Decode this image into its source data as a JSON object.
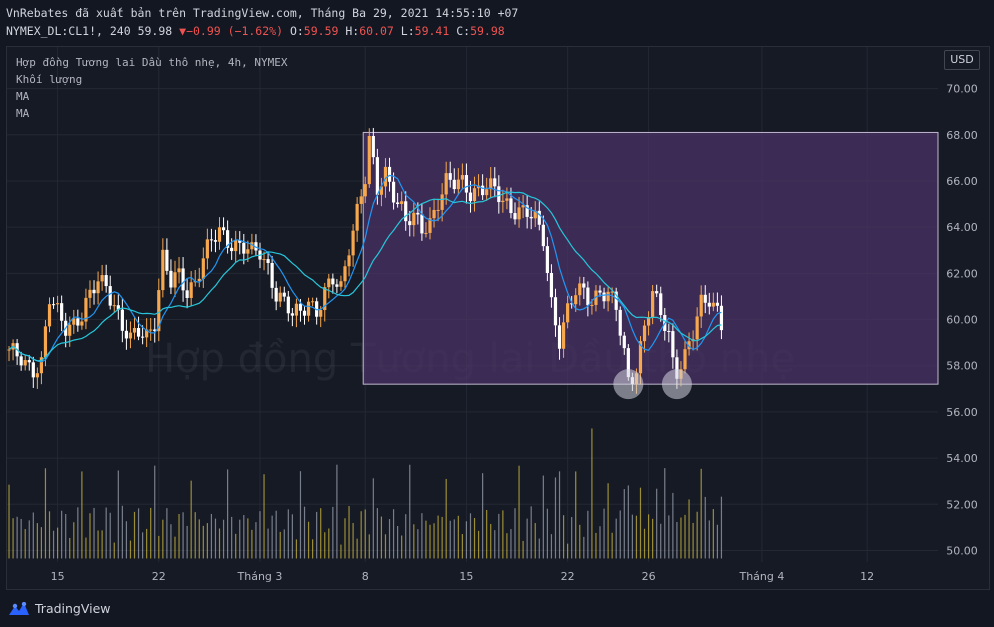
{
  "header": {
    "publisher_line": "VnRebates đã xuất bản trên TradingView.com, Tháng Ba 29, 2021 14:55:10 +07",
    "symbol_interval": "NYMEX_DL:CL1!, 240",
    "last_price": "59.98",
    "change": "−0.99 (−1.62%)",
    "open_label": "O:",
    "open": "59.59",
    "high_label": "H:",
    "high": "60.07",
    "low_label": "L:",
    "low": "59.41",
    "close_label": "C:",
    "close": "59.98"
  },
  "legend": {
    "title": "Hợp đồng Tương lai Dầu thô nhẹ, 4h, NYMEX",
    "volume": "Khối lượng",
    "ma1": "MA",
    "ma2": "MA"
  },
  "currency_label": "USD",
  "watermark": "Hợp đồng Tương lai Dầu thô nhẹ",
  "footer": {
    "brand": "TradingView"
  },
  "colors": {
    "background": "#131722",
    "up": "#f7a74d",
    "down": "#ffffff",
    "ma_fast": "#2196f3",
    "ma_slow": "#26c6da",
    "volume": "#c8b43c",
    "zone_fill": "#4a3366",
    "zone_stroke": "#c0b8d0",
    "marker": "#d1d4dc"
  },
  "chart_data": {
    "type": "candlestick",
    "title": "Hợp đồng Tương lai Dầu thô nhẹ, 4h, NYMEX",
    "y_axis": {
      "ticks": [
        50,
        52,
        54,
        56,
        58,
        60,
        62,
        64,
        66,
        68,
        70
      ],
      "labels": [
        "50.00",
        "52.00",
        "54.00",
        "56.00",
        "58.00",
        "60.00",
        "62.00",
        "64.00",
        "66.00",
        "68.00",
        "70.00"
      ],
      "range": [
        49.5,
        71.8
      ],
      "position": "right"
    },
    "x_axis": {
      "labels": [
        "15",
        "22",
        "Tháng 3",
        "8",
        "15",
        "22",
        "26",
        "Tháng 4",
        "12"
      ],
      "label_positions_in_bars": [
        12,
        37,
        62,
        88,
        113,
        138,
        158,
        186,
        212
      ],
      "total_slots": 230
    },
    "price_path": [
      [
        0,
        58.5
      ],
      [
        3,
        58.4
      ],
      [
        6,
        57.9
      ],
      [
        8,
        58.0
      ],
      [
        10,
        60.8
      ],
      [
        12,
        60.3
      ],
      [
        14,
        59.8
      ],
      [
        16,
        59.9
      ],
      [
        18,
        60.1
      ],
      [
        20,
        60.9
      ],
      [
        22,
        61.7
      ],
      [
        24,
        61.6
      ],
      [
        26,
        60.7
      ],
      [
        28,
        59.6
      ],
      [
        30,
        59.0
      ],
      [
        32,
        59.5
      ],
      [
        34,
        59.4
      ],
      [
        36,
        60.0
      ],
      [
        38,
        62.6
      ],
      [
        40,
        61.5
      ],
      [
        42,
        61.9
      ],
      [
        44,
        61.3
      ],
      [
        46,
        61.7
      ],
      [
        48,
        62.6
      ],
      [
        50,
        63.3
      ],
      [
        52,
        63.8
      ],
      [
        54,
        63.5
      ],
      [
        56,
        63.3
      ],
      [
        58,
        63.1
      ],
      [
        60,
        62.8
      ],
      [
        62,
        62.9
      ],
      [
        64,
        62.3
      ],
      [
        66,
        61.2
      ],
      [
        68,
        60.7
      ],
      [
        70,
        60.1
      ],
      [
        72,
        60.3
      ],
      [
        74,
        60.9
      ],
      [
        76,
        60.4
      ],
      [
        78,
        61.1
      ],
      [
        80,
        61.6
      ],
      [
        82,
        61.3
      ],
      [
        84,
        63.3
      ],
      [
        86,
        64.8
      ],
      [
        88,
        66.1
      ],
      [
        89,
        67.6
      ],
      [
        91,
        65.5
      ],
      [
        93,
        66.4
      ],
      [
        95,
        65.6
      ],
      [
        97,
        64.8
      ],
      [
        98,
        64.2
      ],
      [
        100,
        64.3
      ],
      [
        102,
        63.9
      ],
      [
        104,
        64.3
      ],
      [
        106,
        65.2
      ],
      [
        108,
        65.9
      ],
      [
        110,
        65.8
      ],
      [
        112,
        65.9
      ],
      [
        114,
        65.6
      ],
      [
        116,
        65.7
      ],
      [
        118,
        65.7
      ],
      [
        120,
        65.5
      ],
      [
        122,
        65.1
      ],
      [
        124,
        64.9
      ],
      [
        126,
        64.8
      ],
      [
        128,
        64.6
      ],
      [
        130,
        64.2
      ],
      [
        132,
        63.5
      ],
      [
        134,
        60.8
      ],
      [
        136,
        59.2
      ],
      [
        138,
        60.3
      ],
      [
        140,
        61.1
      ],
      [
        142,
        61.2
      ],
      [
        144,
        60.9
      ],
      [
        146,
        61.3
      ],
      [
        148,
        61.0
      ],
      [
        150,
        60.4
      ],
      [
        152,
        58.5
      ],
      [
        153,
        57.4
      ],
      [
        155,
        58.0
      ],
      [
        157,
        59.7
      ],
      [
        159,
        61.0
      ],
      [
        161,
        60.2
      ],
      [
        163,
        59.4
      ],
      [
        164,
        58.3
      ],
      [
        165,
        57.9
      ],
      [
        167,
        58.4
      ],
      [
        169,
        59.3
      ],
      [
        171,
        60.6
      ],
      [
        173,
        61.0
      ],
      [
        175,
        60.5
      ],
      [
        176,
        59.9
      ]
    ],
    "candle_count": 177,
    "volume_max": 3.7,
    "series": [
      {
        "type": "line",
        "window": 8
      },
      {
        "type": "line",
        "window": 20
      }
    ],
    "annotations": [
      {
        "type": "rectangle",
        "x_start_bar": 88,
        "x_end_bar": 230,
        "y_top": 68.1,
        "y_bottom": 57.2
      },
      {
        "type": "circle",
        "bar": 153,
        "y": 57.2
      },
      {
        "type": "circle",
        "bar": 165,
        "y": 57.2
      }
    ]
  }
}
